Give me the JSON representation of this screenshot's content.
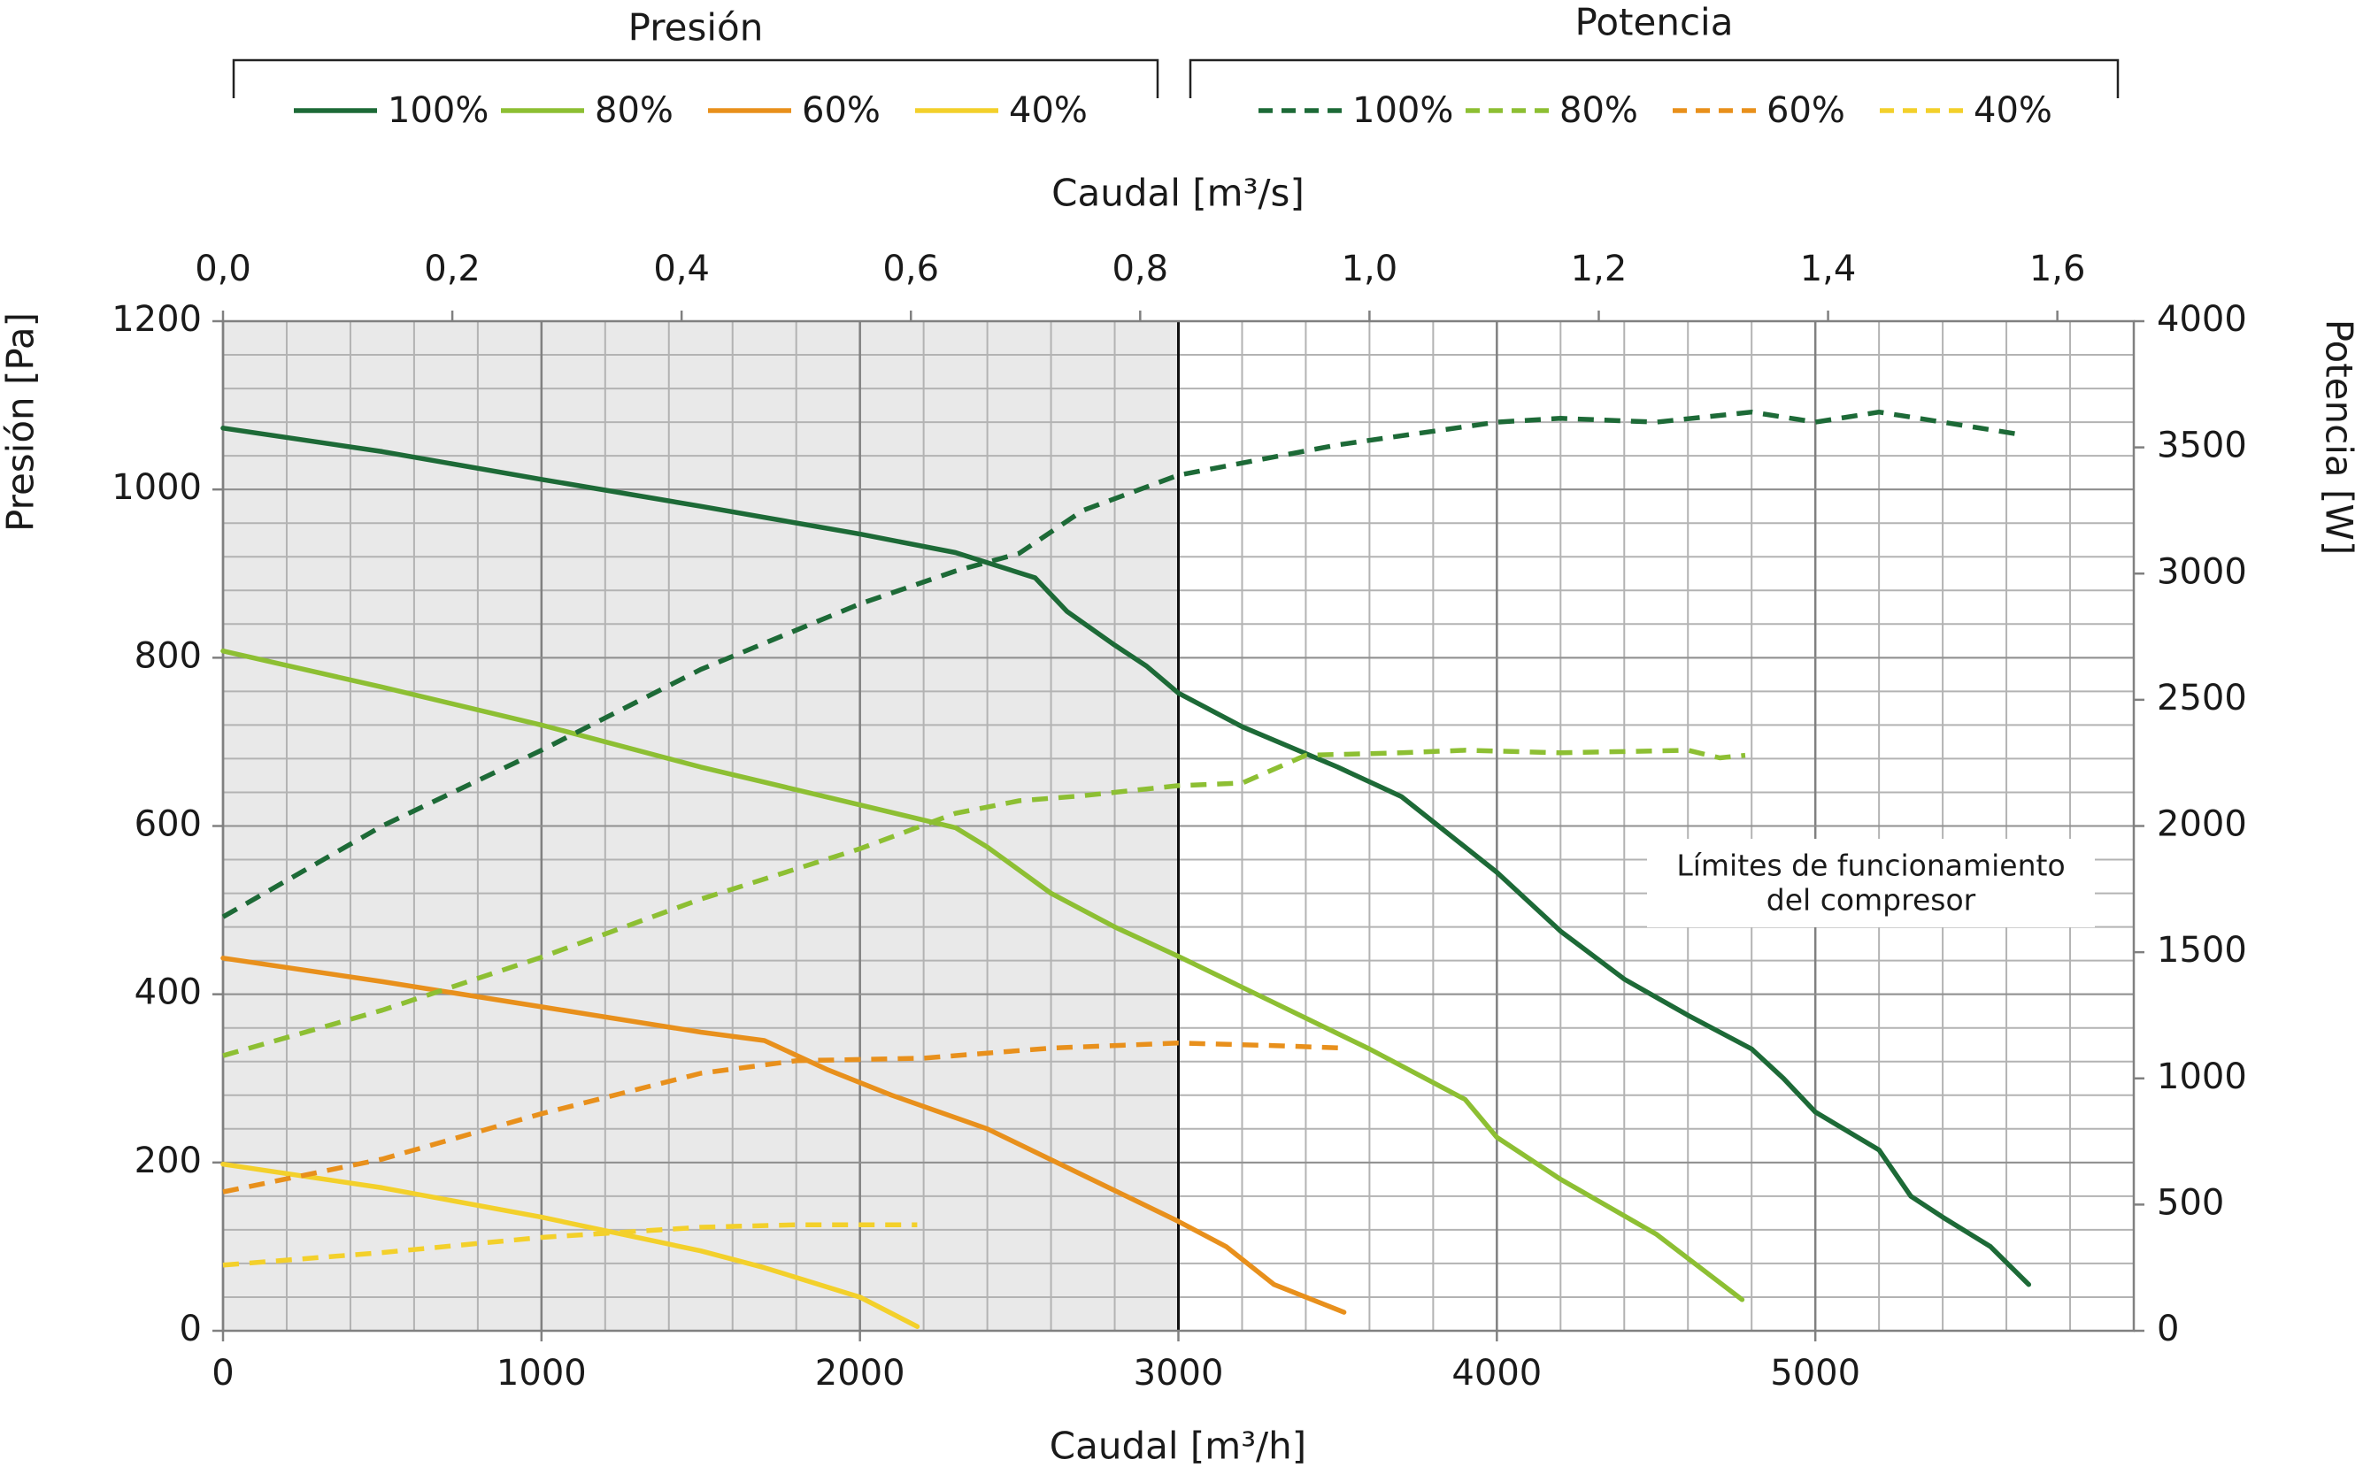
{
  "chart_data": {
    "type": "line",
    "xlabel": "Caudal [m³/h]",
    "x2label": "Caudal [m³/s]",
    "ylabel": "Presión [Pa]",
    "y2label": "Potencia [W]",
    "xlim": [
      0,
      6000
    ],
    "xticks": [
      0,
      1000,
      2000,
      3000,
      4000,
      5000
    ],
    "x2lim": [
      0,
      1.6666667
    ],
    "x2ticks": [
      {
        "value": 0,
        "label": "0,0"
      },
      {
        "value": 0.2,
        "label": "0,2"
      },
      {
        "value": 0.4,
        "label": "0,4"
      },
      {
        "value": 0.6,
        "label": "0,6"
      },
      {
        "value": 0.8,
        "label": "0,8"
      },
      {
        "value": 1.0,
        "label": "1,0"
      },
      {
        "value": 1.2,
        "label": "1,2"
      },
      {
        "value": 1.4,
        "label": "1,4"
      },
      {
        "value": 1.6,
        "label": "1,6"
      }
    ],
    "ylim": [
      0,
      1200
    ],
    "yticks": [
      0,
      200,
      400,
      600,
      800,
      1000,
      1200
    ],
    "y2lim": [
      0,
      4000
    ],
    "y2ticks": [
      0,
      500,
      1000,
      1500,
      2000,
      2500,
      3000,
      3500,
      4000
    ],
    "grid": true,
    "minor_grid": {
      "x": 200,
      "y": 40
    },
    "shaded_xrange": [
      0,
      3000
    ],
    "annotation": {
      "lines": [
        "Límites de funcionamiento",
        "del compresor"
      ]
    },
    "series_groups": [
      {
        "title": "Presión",
        "axis": "y",
        "dashed": false,
        "series": [
          {
            "name": "100%",
            "color": "#1d6a37",
            "x": [
              0,
              500,
              1000,
              1500,
              2000,
              2300,
              2550,
              2650,
              2800,
              2900,
              3000,
              3200,
              3500,
              3700,
              3800,
              4000,
              4200,
              4400,
              4600,
              4800,
              4900,
              5000,
              5200,
              5300,
              5400,
              5550,
              5670
            ],
            "values": [
              1073,
              1045,
              1012,
              980,
              947,
              925,
              895,
              855,
              815,
              790,
              758,
              718,
              670,
              635,
              605,
              545,
              475,
              418,
              375,
              335,
              300,
              260,
              215,
              160,
              135,
              100,
              55
            ]
          },
          {
            "name": "80%",
            "color": "#8dbf33",
            "x": [
              0,
              500,
              1000,
              1500,
              2000,
              2300,
              2400,
              2600,
              2800,
              3000,
              3300,
              3600,
              3900,
              4000,
              4200,
              4500,
              4770
            ],
            "values": [
              808,
              765,
              720,
              670,
              625,
              598,
              575,
              520,
              480,
              445,
              390,
              335,
              275,
              230,
              180,
              115,
              37
            ]
          },
          {
            "name": "60%",
            "color": "#e8901c",
            "x": [
              0,
              500,
              1000,
              1500,
              1700,
              1900,
              2100,
              2400,
              2700,
              3000,
              3150,
              3300,
              3520
            ],
            "values": [
              443,
              415,
              385,
              355,
              345,
              310,
              280,
              240,
              185,
              130,
              100,
              55,
              22
            ]
          },
          {
            "name": "40%",
            "color": "#f3d02b",
            "x": [
              0,
              500,
              1000,
              1500,
              1700,
              2000,
              2180
            ],
            "values": [
              198,
              170,
              135,
              95,
              75,
              40,
              5
            ]
          }
        ]
      },
      {
        "title": "Potencia",
        "axis": "y2",
        "dashed": true,
        "series": [
          {
            "name": "100%",
            "color": "#1d6a37",
            "x": [
              0,
              500,
              1000,
              1500,
              2000,
              2300,
              2500,
              2700,
              3000,
              3500,
              4000,
              4200,
              4500,
              4800,
              5000,
              5200,
              5400,
              5650
            ],
            "values": [
              1640,
              2000,
              2300,
              2620,
              2880,
              3010,
              3080,
              3250,
              3390,
              3510,
              3600,
              3615,
              3600,
              3640,
              3600,
              3640,
              3600,
              3550
            ]
          },
          {
            "name": "80%",
            "color": "#8dbf33",
            "x": [
              0,
              500,
              1000,
              1500,
              2000,
              2300,
              2500,
              2700,
              3000,
              3200,
              3400,
              3700,
              3900,
              4200,
              4600,
              4700,
              4780
            ],
            "values": [
              1090,
              1270,
              1480,
              1710,
              1910,
              2050,
              2100,
              2120,
              2160,
              2170,
              2280,
              2290,
              2300,
              2290,
              2300,
              2270,
              2280
            ]
          },
          {
            "name": "60%",
            "color": "#e8901c",
            "x": [
              0,
              500,
              1000,
              1500,
              1800,
              2200,
              2600,
              3000,
              3300,
              3520
            ],
            "values": [
              550,
              680,
              860,
              1020,
              1070,
              1080,
              1120,
              1140,
              1130,
              1120
            ]
          },
          {
            "name": "40%",
            "color": "#f3d02b",
            "x": [
              0,
              500,
              1000,
              1500,
              1800,
              2180
            ],
            "values": [
              260,
              310,
              370,
              410,
              420,
              420
            ]
          }
        ]
      }
    ]
  }
}
